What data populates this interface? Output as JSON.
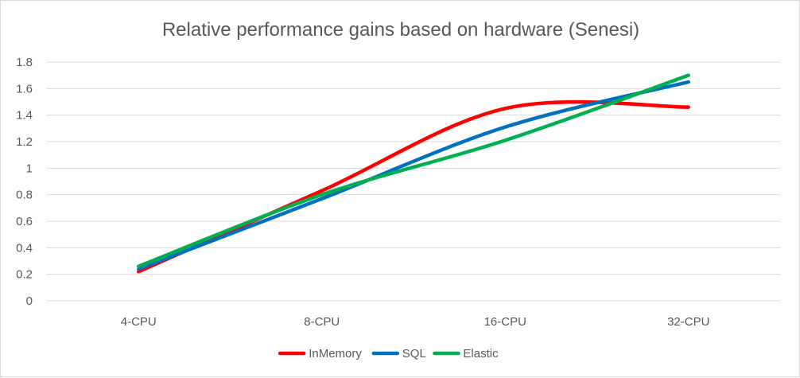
{
  "chart_data": {
    "type": "line",
    "title": "Relative performance gains based on hardware (Senesi)",
    "categories": [
      "4-CPU",
      "8-CPU",
      "16-CPU",
      "32-CPU"
    ],
    "y_ticks": [
      "0",
      "0.2",
      "0.4",
      "0.6",
      "0.8",
      "1",
      "1.2",
      "1.4",
      "1.6",
      "1.8"
    ],
    "ylim": [
      0,
      1.8
    ],
    "grid": true,
    "smooth": true,
    "legend_position": "bottom",
    "series": [
      {
        "name": "InMemory",
        "color": "#ff0000",
        "values": [
          0.22,
          0.83,
          1.45,
          1.46
        ]
      },
      {
        "name": "SQL",
        "color": "#0070c0",
        "values": [
          0.24,
          0.77,
          1.31,
          1.65
        ]
      },
      {
        "name": "Elastic",
        "color": "#00b050",
        "values": [
          0.26,
          0.8,
          1.21,
          1.7
        ]
      }
    ]
  }
}
